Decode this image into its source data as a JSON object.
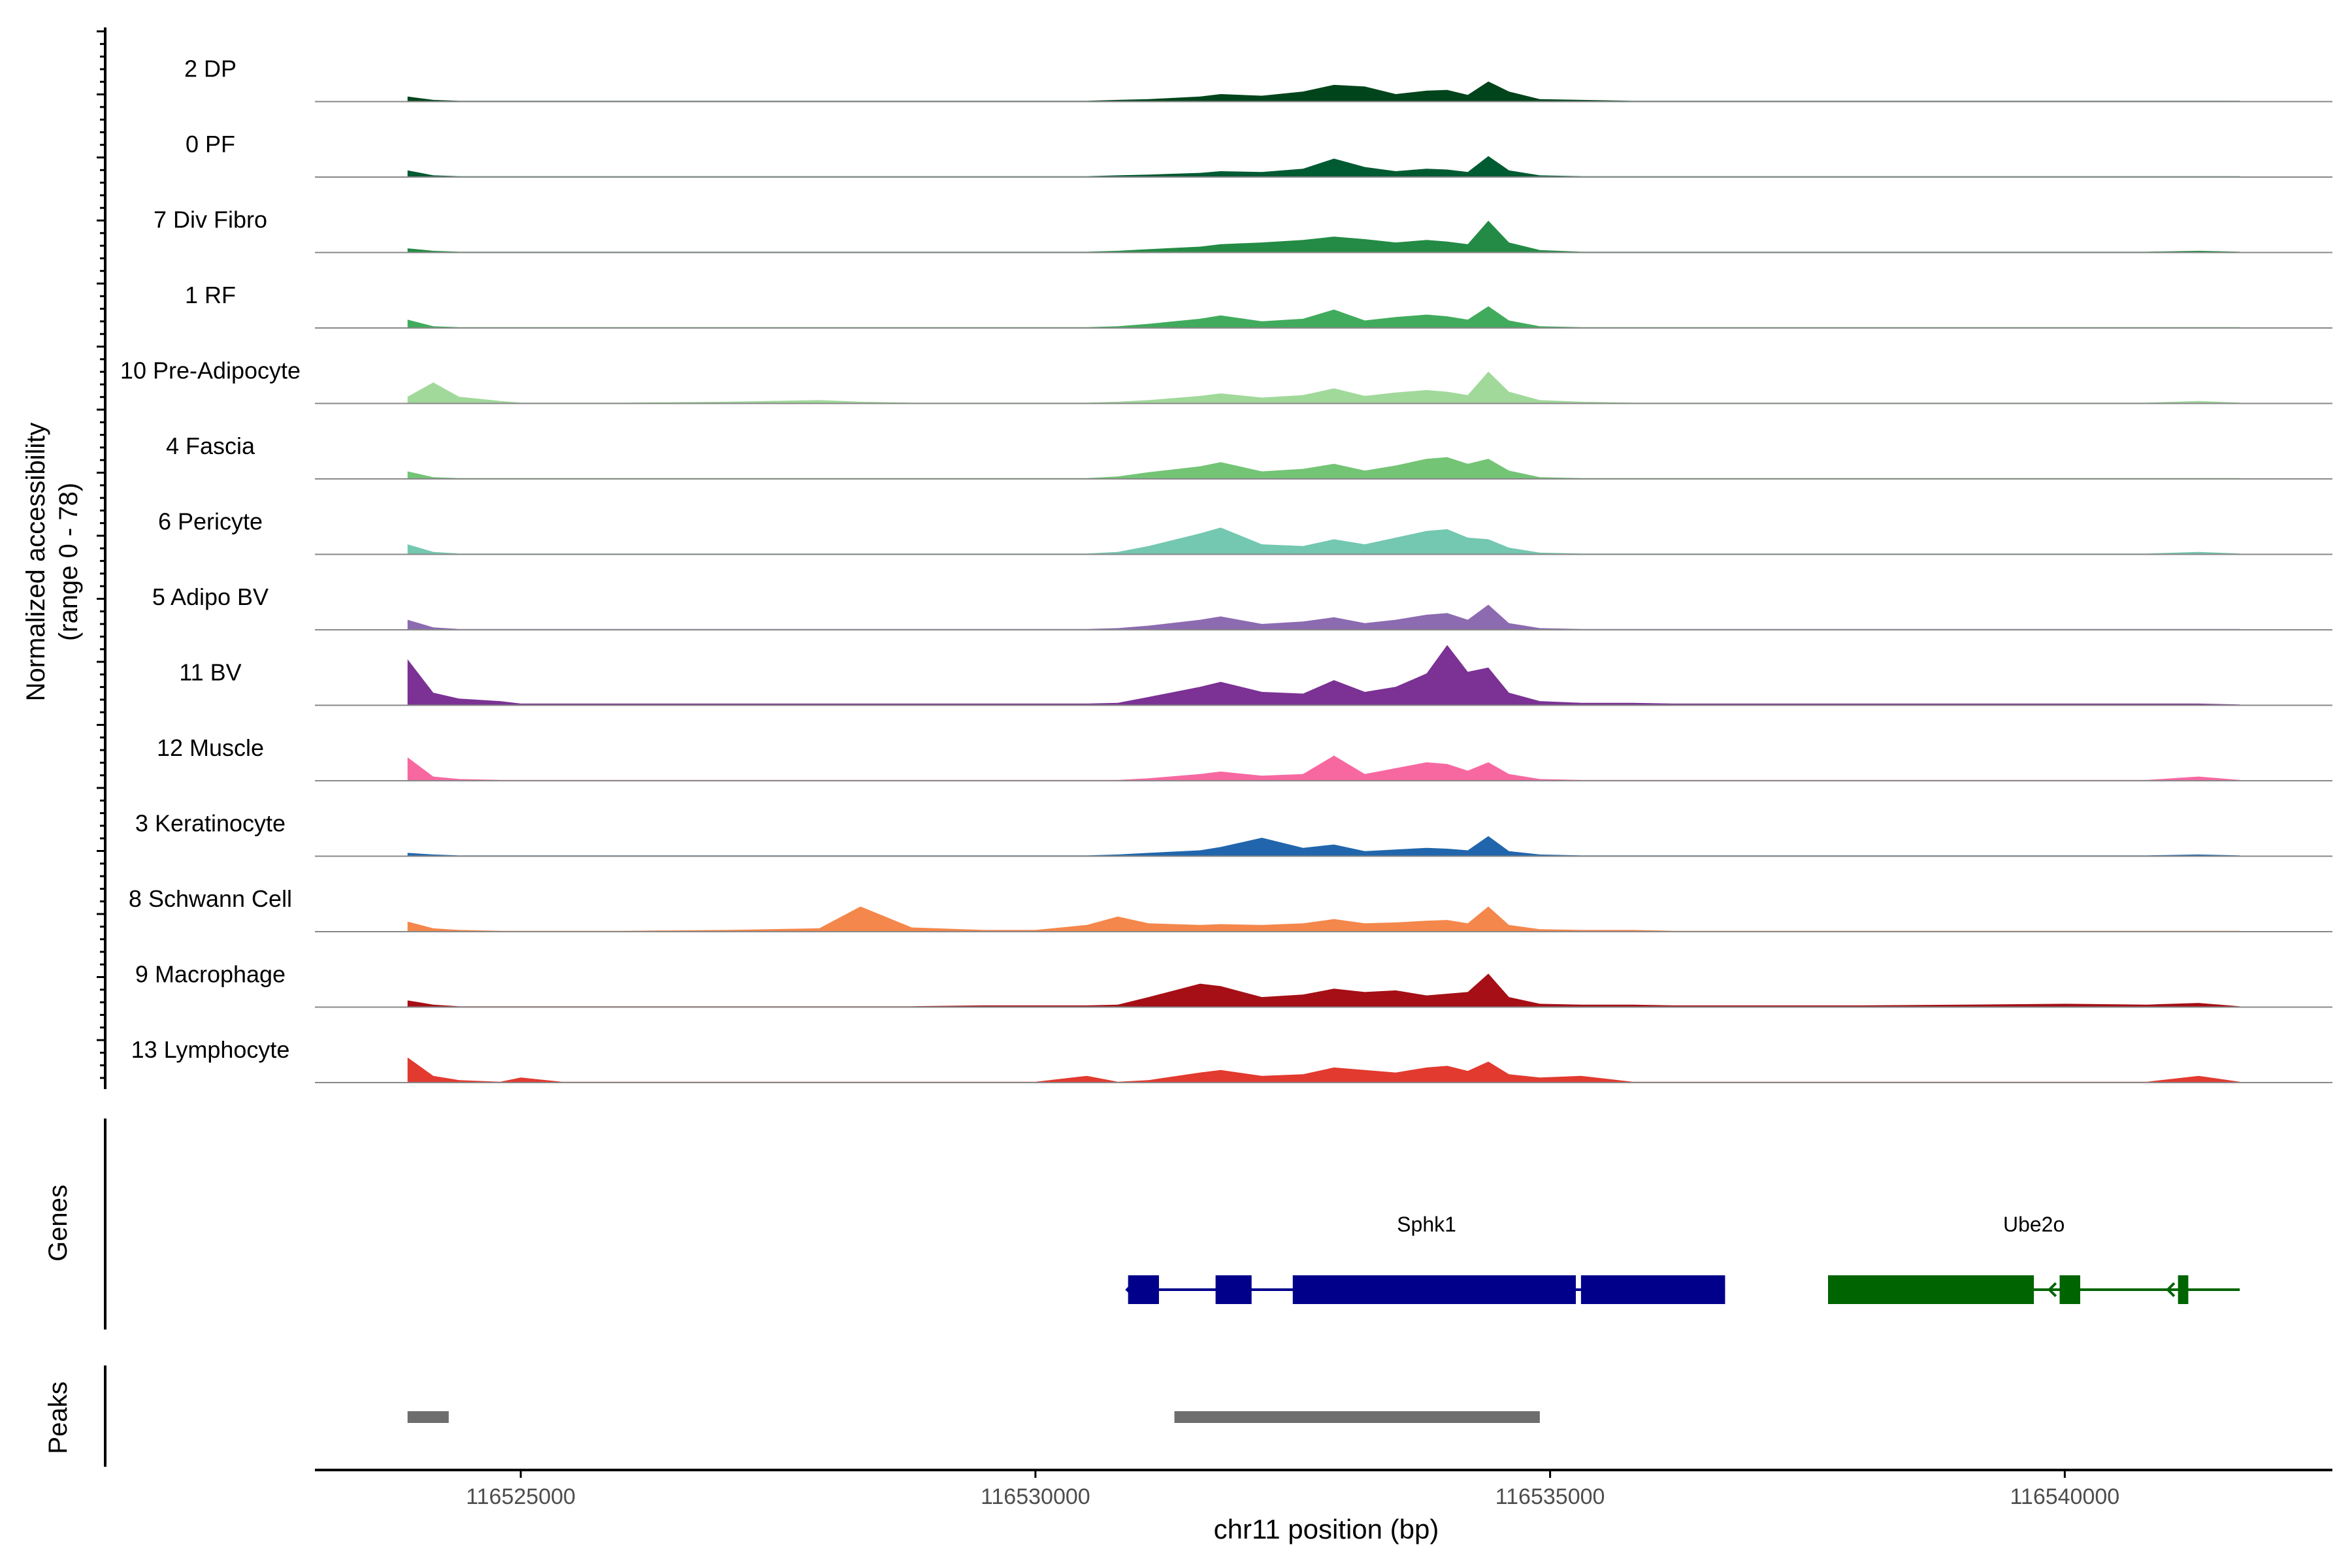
{
  "chart_data": {
    "type": "area",
    "title": "",
    "ylabel": "Normalized accessibility",
    "ylabel_range": "(range 0 - 78)",
    "xlabel": "chr11 position (bp)",
    "xlim": [
      116523000,
      116542600
    ],
    "x_ticks": [
      116525000,
      116530000,
      116535000,
      116540000
    ],
    "x_tick_labels": [
      "116525000",
      "116530000",
      "116535000",
      "116540000"
    ],
    "track_labels": {
      "genes": "Genes",
      "peaks": "Peaks"
    },
    "coverage_x": [
      116523900,
      116524150,
      116524400,
      116524800,
      116525000,
      116525400,
      116526000,
      116527000,
      116527900,
      116528300,
      116528800,
      116529500,
      116530000,
      116530500,
      116530800,
      116531100,
      116531600,
      116531800,
      116532200,
      116532600,
      116532900,
      116533200,
      116533500,
      116533800,
      116534000,
      116534200,
      116534400,
      116534600,
      116534900,
      116535300,
      116535800,
      116536200,
      116537000,
      116538000,
      116539000,
      116540000,
      116540800,
      116541300,
      116541700
    ],
    "series": [
      {
        "name": "2 DP",
        "color": "#00441b",
        "values": [
          6,
          2,
          1,
          1,
          1,
          1,
          1,
          1,
          1,
          1,
          1,
          1,
          1,
          1,
          2,
          3,
          6,
          9,
          7,
          12,
          20,
          18,
          9,
          13,
          14,
          8,
          24,
          12,
          3,
          2,
          1,
          1,
          1,
          1,
          1,
          1,
          1,
          1,
          1
        ]
      },
      {
        "name": "0 PF",
        "color": "#005a32",
        "values": [
          8,
          2,
          1,
          1,
          1,
          1,
          1,
          1,
          1,
          1,
          1,
          1,
          1,
          1,
          2,
          3,
          5,
          7,
          6,
          10,
          22,
          12,
          7,
          10,
          9,
          6,
          25,
          8,
          2,
          1,
          1,
          1,
          1,
          1,
          1,
          1,
          1,
          1,
          1
        ]
      },
      {
        "name": "7 Div Fibro",
        "color": "#238b45",
        "values": [
          5,
          2,
          1,
          1,
          1,
          1,
          1,
          1,
          1,
          1,
          1,
          1,
          1,
          1,
          2,
          4,
          7,
          10,
          12,
          15,
          19,
          16,
          12,
          15,
          13,
          10,
          38,
          12,
          3,
          1,
          1,
          1,
          1,
          1,
          1,
          1,
          1,
          2,
          1
        ]
      },
      {
        "name": "1 RF",
        "color": "#41ab5d",
        "values": [
          10,
          2,
          1,
          1,
          1,
          1,
          1,
          1,
          1,
          1,
          1,
          1,
          1,
          1,
          2,
          5,
          11,
          15,
          8,
          11,
          22,
          9,
          13,
          16,
          14,
          10,
          26,
          9,
          2,
          1,
          1,
          1,
          1,
          1,
          1,
          1,
          1,
          1,
          1
        ]
      },
      {
        "name": "10 Pre-Adipocyte",
        "color": "#a1d99b",
        "values": [
          8,
          25,
          8,
          3,
          1,
          1,
          1,
          2,
          4,
          2,
          1,
          1,
          1,
          1,
          2,
          4,
          9,
          12,
          7,
          10,
          18,
          9,
          13,
          16,
          14,
          10,
          38,
          14,
          4,
          2,
          1,
          1,
          1,
          1,
          1,
          1,
          1,
          3,
          1
        ]
      },
      {
        "name": "4 Fascia",
        "color": "#74c476",
        "values": [
          9,
          2,
          1,
          1,
          1,
          1,
          1,
          1,
          1,
          1,
          1,
          1,
          1,
          1,
          3,
          8,
          15,
          20,
          9,
          12,
          18,
          10,
          16,
          24,
          26,
          18,
          24,
          10,
          2,
          1,
          1,
          1,
          1,
          1,
          1,
          1,
          1,
          1,
          1
        ]
      },
      {
        "name": "6 Pericyte",
        "color": "#74c7b0",
        "values": [
          12,
          3,
          1,
          1,
          1,
          1,
          1,
          1,
          1,
          1,
          1,
          1,
          1,
          1,
          3,
          10,
          25,
          32,
          12,
          10,
          18,
          12,
          20,
          28,
          30,
          20,
          18,
          8,
          2,
          1,
          1,
          1,
          1,
          1,
          1,
          1,
          1,
          3,
          1
        ]
      },
      {
        "name": "5 Adipo BV",
        "color": "#8c6bb1",
        "values": [
          12,
          3,
          1,
          1,
          1,
          1,
          1,
          1,
          1,
          1,
          1,
          1,
          1,
          1,
          2,
          5,
          12,
          16,
          7,
          10,
          15,
          8,
          12,
          18,
          20,
          12,
          30,
          8,
          2,
          1,
          1,
          1,
          1,
          1,
          1,
          1,
          1,
          1,
          1
        ]
      },
      {
        "name": "11 BV",
        "color": "#7b3294",
        "values": [
          55,
          15,
          8,
          5,
          2,
          2,
          2,
          2,
          2,
          2,
          2,
          2,
          2,
          2,
          3,
          10,
          22,
          28,
          16,
          14,
          30,
          16,
          22,
          38,
          72,
          40,
          45,
          15,
          5,
          3,
          3,
          2,
          2,
          2,
          2,
          2,
          2,
          2,
          1
        ]
      },
      {
        "name": "12 Muscle",
        "color": "#f768a1",
        "values": [
          28,
          5,
          2,
          1,
          1,
          1,
          1,
          1,
          1,
          1,
          1,
          1,
          1,
          1,
          1,
          3,
          8,
          11,
          6,
          8,
          30,
          8,
          15,
          22,
          20,
          12,
          22,
          8,
          2,
          1,
          1,
          1,
          1,
          1,
          1,
          1,
          1,
          5,
          1
        ]
      },
      {
        "name": "3 Keratinocyte",
        "color": "#2166ac",
        "values": [
          4,
          2,
          1,
          1,
          1,
          1,
          1,
          1,
          1,
          1,
          1,
          1,
          1,
          1,
          2,
          4,
          7,
          11,
          22,
          10,
          14,
          6,
          8,
          10,
          9,
          7,
          24,
          6,
          2,
          1,
          1,
          1,
          1,
          1,
          1,
          1,
          1,
          2,
          1
        ]
      },
      {
        "name": "8 Schwann Cell",
        "color": "#f4874b",
        "values": [
          12,
          4,
          2,
          1,
          1,
          1,
          1,
          2,
          4,
          30,
          5,
          2,
          2,
          8,
          18,
          10,
          8,
          9,
          8,
          10,
          15,
          10,
          11,
          13,
          14,
          10,
          30,
          8,
          3,
          2,
          2,
          1,
          1,
          1,
          1,
          1,
          1,
          1,
          1
        ]
      },
      {
        "name": "9 Macrophage",
        "color": "#a50f15",
        "values": [
          8,
          3,
          1,
          1,
          1,
          1,
          1,
          1,
          1,
          1,
          1,
          2,
          2,
          2,
          3,
          12,
          28,
          25,
          12,
          15,
          22,
          18,
          20,
          14,
          16,
          18,
          40,
          12,
          4,
          3,
          3,
          2,
          2,
          2,
          3,
          4,
          3,
          5,
          1
        ]
      },
      {
        "name": "13 Lymphocyte",
        "color": "#e23a2f",
        "values": [
          30,
          8,
          3,
          1,
          6,
          1,
          1,
          1,
          1,
          1,
          1,
          1,
          1,
          8,
          1,
          3,
          12,
          15,
          8,
          10,
          18,
          15,
          12,
          18,
          20,
          14,
          25,
          10,
          6,
          8,
          1,
          1,
          1,
          1,
          1,
          1,
          1,
          8,
          1
        ]
      }
    ],
    "genes": [
      {
        "name": "Sphk1",
        "color": "#00008b",
        "strand": "-",
        "start": 116530900,
        "end": 116536700,
        "exons": [
          [
            116530900,
            116531200
          ],
          [
            116531750,
            116532100
          ],
          [
            116532500,
            116535250
          ],
          [
            116535300,
            116536700
          ]
        ]
      },
      {
        "name": "Ube2o",
        "color": "#006400",
        "strand": "-",
        "start": 116537700,
        "end": 116541700,
        "exons": [
          [
            116537700,
            116539700
          ],
          [
            116539950,
            116540150
          ],
          [
            116541100,
            116541200
          ]
        ]
      }
    ],
    "peaks": [
      [
        116523900,
        116524300
      ],
      [
        116531350,
        116534900
      ]
    ]
  }
}
